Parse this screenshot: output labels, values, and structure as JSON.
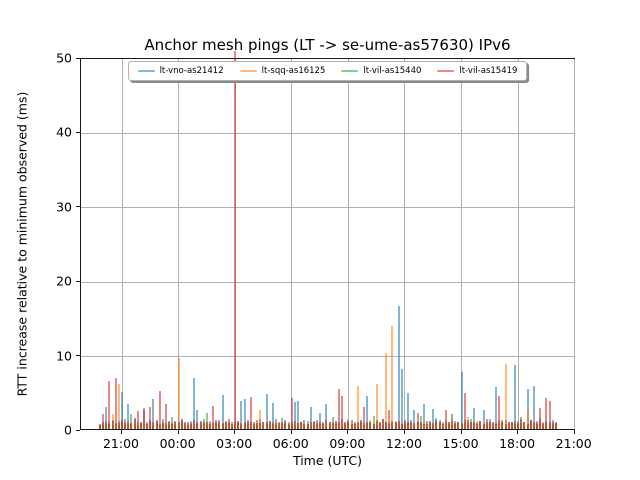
{
  "chart_data": {
    "type": "bar",
    "title": "Anchor mesh pings (LT -> se-ume-as57630) IPv6",
    "xlabel": "Time (UTC)",
    "ylabel": "RTT increase relative to minimum observed (ms)",
    "ylim": [
      0,
      50
    ],
    "yticks": [
      0,
      10,
      20,
      30,
      40,
      50
    ],
    "xticks": [
      "21:00",
      "00:00",
      "03:00",
      "06:00",
      "09:00",
      "12:00",
      "15:00",
      "18:00",
      "21:00"
    ],
    "grid": true,
    "legend_position": "upper center",
    "bar_alpha": 0.55,
    "x_start": "19:50",
    "x_step_minutes": 10,
    "clipped_spike": {
      "series": "lt-vil-as15419",
      "time": "03:00",
      "value": ">50 (clipped at axis top)"
    },
    "series": [
      {
        "name": "lt-vno-as21412",
        "color": "#1f77b4",
        "values": [
          0.6,
          0.9,
          3.0,
          0.7,
          1.2,
          0.8,
          1.1,
          5.0,
          1.3,
          3.3,
          0.8,
          1.5,
          0.6,
          1.0,
          2.8,
          0.7,
          1.2,
          4.0,
          0.9,
          0.6,
          1.4,
          0.8,
          1.1,
          0.7,
          1.0,
          0.8,
          1.2,
          0.9,
          0.6,
          1.1,
          6.8,
          2.5,
          0.9,
          1.3,
          0.7,
          1.0,
          0.8,
          1.2,
          0.9,
          4.6,
          1.1,
          0.7,
          0.9,
          1.0,
          0.8,
          3.8,
          4.0,
          1.2,
          0.7,
          1.0,
          0.8,
          1.3,
          0.9,
          4.7,
          1.1,
          3.5,
          0.8,
          1.0,
          0.7,
          1.2,
          0.9,
          0.8,
          3.6,
          3.8,
          1.0,
          0.7,
          1.1,
          3.0,
          0.9,
          1.2,
          2.2,
          0.8,
          3.4,
          1.0,
          0.7,
          1.1,
          0.9,
          1.3,
          0.8,
          1.0,
          1.2,
          0.7,
          0.9,
          1.1,
          0.8,
          4.5,
          1.0,
          0.7,
          1.2,
          0.9,
          1.4,
          1.0,
          0.8,
          1.1,
          0.9,
          16.5,
          8.0,
          1.2,
          4.8,
          0.9,
          2.6,
          1.0,
          0.8,
          3.4,
          0.7,
          1.1,
          2.7,
          0.9,
          1.2,
          0.8,
          1.0,
          0.7,
          2.0,
          1.1,
          0.9,
          7.6,
          1.2,
          0.8,
          1.0,
          2.8,
          0.7,
          1.1,
          2.5,
          0.9,
          1.3,
          0.8,
          5.6,
          1.0,
          0.9,
          1.2,
          0.7,
          1.0,
          8.6,
          1.1,
          0.8,
          0.9,
          5.4,
          1.2,
          5.8,
          0.8,
          1.0,
          0.7,
          1.1,
          0.9,
          1.2,
          0.8
        ]
      },
      {
        "name": "lt-sqq-as16125",
        "color": "#ff7f0e",
        "values": [
          0.5,
          0.8,
          0.6,
          1.0,
          2.0,
          0.7,
          6.0,
          0.9,
          0.6,
          1.1,
          0.8,
          0.5,
          0.9,
          0.7,
          1.0,
          0.6,
          0.8,
          0.5,
          1.1,
          0.7,
          0.9,
          0.6,
          0.8,
          1.0,
          0.7,
          9.6,
          0.9,
          0.6,
          0.8,
          0.5,
          1.0,
          0.7,
          0.9,
          0.6,
          0.8,
          1.1,
          0.5,
          0.7,
          0.9,
          0.6,
          1.0,
          0.8,
          0.5,
          0.7,
          1.1,
          0.6,
          0.9,
          0.7,
          0.5,
          1.0,
          0.8,
          2.6,
          0.6,
          0.9,
          0.7,
          1.0,
          0.5,
          0.8,
          0.6,
          1.1,
          0.7,
          0.9,
          0.5,
          0.8,
          1.0,
          0.6,
          0.7,
          0.9,
          0.5,
          1.1,
          0.8,
          0.6,
          1.0,
          0.7,
          0.9,
          0.5,
          0.8,
          1.1,
          0.6,
          1.3,
          0.9,
          0.7,
          5.8,
          1.0,
          0.6,
          0.8,
          1.2,
          0.7,
          6.0,
          0.9,
          1.0,
          10.2,
          0.8,
          13.8,
          1.1,
          0.7,
          0.9,
          0.6,
          1.0,
          0.8,
          0.5,
          0.9,
          0.7,
          1.1,
          0.6,
          0.8,
          0.5,
          1.0,
          0.7,
          0.9,
          1.2,
          0.6,
          1.5,
          0.8,
          1.0,
          0.7,
          0.9,
          1.6,
          0.6,
          0.8,
          1.1,
          0.5,
          0.9,
          0.7,
          1.0,
          0.6,
          0.8,
          1.2,
          0.7,
          8.7,
          0.9,
          0.6,
          1.0,
          0.8,
          0.5,
          0.9,
          2.6,
          0.7,
          1.1,
          0.6,
          0.8,
          1.0,
          0.7,
          0.9,
          0.6,
          0.8
        ]
      },
      {
        "name": "lt-vil-as15440",
        "color": "#2ca02c",
        "values": [
          0.4,
          0.6,
          0.5,
          0.8,
          0.4,
          0.7,
          0.5,
          0.9,
          0.6,
          0.4,
          2.0,
          0.7,
          0.5,
          0.8,
          0.4,
          0.6,
          0.9,
          0.5,
          0.7,
          0.4,
          0.8,
          0.6,
          0.5,
          1.6,
          0.7,
          0.4,
          0.9,
          0.5,
          0.6,
          0.8,
          0.4,
          0.7,
          0.5,
          0.9,
          2.2,
          0.6,
          0.4,
          0.8,
          0.5,
          0.7,
          0.6,
          0.9,
          0.4,
          0.5,
          0.8,
          0.6,
          0.7,
          0.4,
          0.9,
          0.5,
          0.6,
          0.8,
          0.4,
          0.7,
          0.5,
          0.9,
          0.6,
          0.4,
          1.5,
          0.7,
          0.5,
          0.8,
          0.4,
          0.6,
          0.9,
          0.5,
          0.7,
          0.4,
          0.8,
          0.6,
          0.5,
          0.9,
          0.4,
          0.7,
          1.6,
          0.5,
          0.8,
          0.4,
          0.6,
          0.9,
          0.5,
          0.7,
          0.4,
          0.8,
          0.6,
          0.5,
          0.9,
          1.8,
          0.4,
          0.7,
          0.5,
          0.8,
          0.6,
          0.4,
          0.9,
          0.5,
          0.7,
          0.6,
          0.8,
          0.4,
          0.5,
          0.9,
          1.8,
          0.6,
          0.4,
          0.7,
          0.5,
          1.5,
          0.8,
          0.4,
          0.6,
          0.9,
          0.5,
          0.7,
          0.4,
          0.8,
          0.6,
          0.5,
          1.4,
          0.7,
          0.4,
          0.9,
          0.5,
          0.6,
          0.8,
          0.4,
          0.7,
          0.5,
          0.9,
          0.6,
          0.4,
          0.8,
          0.5,
          0.7,
          1.6,
          0.4,
          0.6,
          0.9,
          0.5,
          0.7,
          1.5,
          0.4,
          0.8,
          0.6,
          0.5,
          0.7
        ]
      },
      {
        "name": "lt-vil-as15419",
        "color": "#d62728",
        "values": [
          0.7,
          2.0,
          0.9,
          6.5,
          1.1,
          6.8,
          0.8,
          1.2,
          0.9,
          1.0,
          0.7,
          1.3,
          2.4,
          0.8,
          2.6,
          1.0,
          3.0,
          0.9,
          1.2,
          5.1,
          0.8,
          3.4,
          1.0,
          0.7,
          1.1,
          0.9,
          1.3,
          0.8,
          1.0,
          0.7,
          1.2,
          0.9,
          1.1,
          0.8,
          1.0,
          0.7,
          3.1,
          0.9,
          1.2,
          0.8,
          1.0,
          1.3,
          0.7,
          55.0,
          1.1,
          0.8,
          1.0,
          0.9,
          4.3,
          0.7,
          1.2,
          0.8,
          1.0,
          0.9,
          1.1,
          0.7,
          1.3,
          0.8,
          1.0,
          0.9,
          0.7,
          4.2,
          1.1,
          0.8,
          1.0,
          1.2,
          0.7,
          0.9,
          1.1,
          0.8,
          1.0,
          0.7,
          1.2,
          0.9,
          0.8,
          1.0,
          5.4,
          4.5,
          0.9,
          1.1,
          0.7,
          1.0,
          0.8,
          1.2,
          3.0,
          0.9,
          1.0,
          0.7,
          1.1,
          0.8,
          1.3,
          0.9,
          2.6,
          1.0,
          0.8,
          1.1,
          0.7,
          1.0,
          0.9,
          1.2,
          0.8,
          2.2,
          1.0,
          0.7,
          1.1,
          0.9,
          0.8,
          1.2,
          1.0,
          0.7,
          2.5,
          0.9,
          1.1,
          0.8,
          1.0,
          0.7,
          4.9,
          1.2,
          0.9,
          1.0,
          0.8,
          1.1,
          0.7,
          1.3,
          0.9,
          1.0,
          0.8,
          4.5,
          1.2,
          0.7,
          1.0,
          0.9,
          1.1,
          0.8,
          1.3,
          1.0,
          0.7,
          1.2,
          0.9,
          1.1,
          2.8,
          0.8,
          4.2,
          3.8,
          1.0,
          0.9
        ]
      }
    ]
  }
}
